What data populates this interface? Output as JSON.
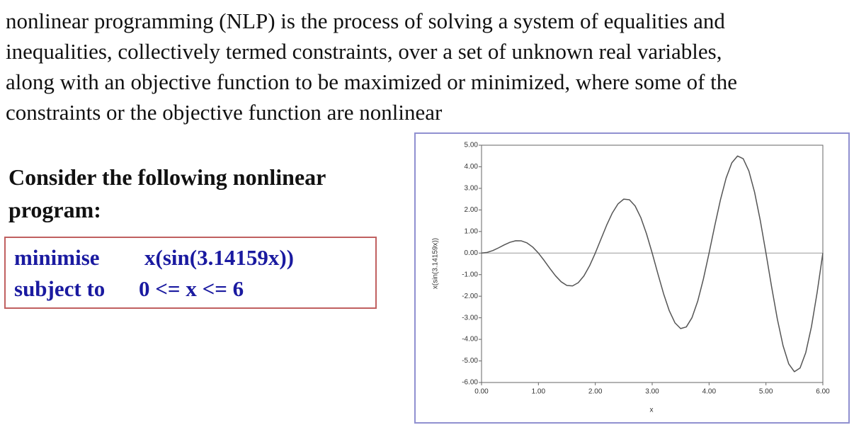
{
  "paragraph": [
    "nonlinear programming (NLP) is the process of solving a system of equalities and",
    "inequalities, collectively termed constraints, over a set of unknown real variables,",
    "along with an objective function to be maximized or minimized, where some of the",
    "constraints or the objective function are nonlinear"
  ],
  "heading": [
    "Consider the following nonlinear",
    "program:"
  ],
  "program": {
    "rows": [
      [
        "minimise",
        "x(sin(3.14159x))"
      ],
      [
        "subject to",
        "0 <= x <= 6"
      ]
    ]
  },
  "chart_data": {
    "type": "line",
    "xlabel": "x",
    "ylabel": "x(sin(3.14159x))",
    "x": [
      0,
      0.1,
      0.2,
      0.3,
      0.4,
      0.5,
      0.6,
      0.7,
      0.8,
      0.9,
      1,
      1.1,
      1.2,
      1.3,
      1.4,
      1.5,
      1.6,
      1.7,
      1.8,
      1.9,
      2,
      2.1,
      2.2,
      2.3,
      2.4,
      2.5,
      2.6,
      2.7,
      2.8,
      2.9,
      3,
      3.1,
      3.2,
      3.3,
      3.4,
      3.5,
      3.6,
      3.7,
      3.8,
      3.9,
      4,
      4.1,
      4.2,
      4.3,
      4.4,
      4.5,
      4.6,
      4.7,
      4.8,
      4.9,
      5,
      5.1,
      5.2,
      5.3,
      5.4,
      5.5,
      5.6,
      5.7,
      5.8,
      5.9,
      6
    ],
    "series": [
      {
        "color": "#555555",
        "values": [
          0,
          0.031,
          0.118,
          0.243,
          0.38,
          0.5,
          0.571,
          0.566,
          0.47,
          0.278,
          0,
          -0.34,
          -0.706,
          -1.052,
          -1.331,
          -1.5,
          -1.522,
          -1.375,
          -1.058,
          -0.587,
          0,
          0.649,
          1.294,
          1.861,
          2.282,
          2.5,
          2.473,
          2.184,
          1.646,
          0.896,
          0,
          -0.958,
          -1.882,
          -2.67,
          -3.233,
          -3.5,
          -3.424,
          -2.993,
          -2.234,
          -1.205,
          0,
          1.267,
          2.47,
          3.479,
          4.184,
          4.5,
          4.375,
          3.802,
          2.822,
          1.514,
          0,
          -1.576,
          -3.058,
          -4.288,
          -5.135,
          -5.5,
          -5.326,
          -4.611,
          -3.41,
          -1.823,
          0
        ]
      }
    ],
    "xlim": [
      0,
      6
    ],
    "ylim": [
      -6,
      5
    ],
    "xticks": [
      {
        "value": 0,
        "label": "0.00"
      },
      {
        "value": 1,
        "label": "1.00"
      },
      {
        "value": 2,
        "label": "2.00"
      },
      {
        "value": 3,
        "label": "3.00"
      },
      {
        "value": 4,
        "label": "4.00"
      },
      {
        "value": 5,
        "label": "5.00"
      },
      {
        "value": 6,
        "label": "6.00"
      }
    ],
    "yticks": [
      {
        "value": 5,
        "label": "5.00"
      },
      {
        "value": 4,
        "label": "4.00"
      },
      {
        "value": 3,
        "label": "3.00"
      },
      {
        "value": 2,
        "label": "2.00"
      },
      {
        "value": 1,
        "label": "1.00"
      },
      {
        "value": 0,
        "label": "0.00"
      },
      {
        "value": -1,
        "label": "-1.00"
      },
      {
        "value": -2,
        "label": "-2.00"
      },
      {
        "value": -3,
        "label": "-3.00"
      },
      {
        "value": -4,
        "label": "-4.00"
      },
      {
        "value": -5,
        "label": "-5.00"
      },
      {
        "value": -6,
        "label": "-6.00"
      }
    ],
    "zero_line": true
  }
}
